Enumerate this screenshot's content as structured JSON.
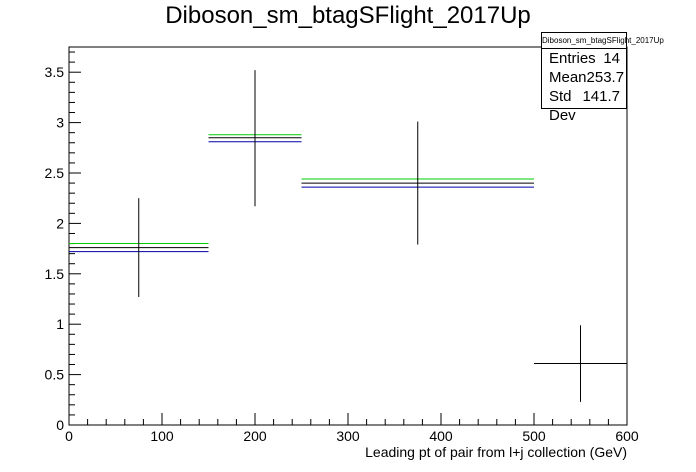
{
  "chart_data": {
    "type": "histogram",
    "title": "Diboson_sm_btagSFlight_2017Up",
    "xlabel": "Leading pt of pair from l+j collection (GeV)",
    "ylabel": "",
    "xlim": [
      0,
      600
    ],
    "ylim": [
      0,
      3.75
    ],
    "x_ticks": [
      0,
      100,
      200,
      300,
      400,
      500,
      600
    ],
    "y_ticks": [
      0,
      0.5,
      1,
      1.5,
      2,
      2.5,
      3,
      3.5
    ],
    "bins": [
      {
        "low": 0,
        "high": 150,
        "center": 75,
        "value": 1.76,
        "err_low": 1.27,
        "err_high": 2.25
      },
      {
        "low": 150,
        "high": 250,
        "center": 200,
        "value": 2.85,
        "err_low": 2.17,
        "err_high": 3.52
      },
      {
        "low": 250,
        "high": 500,
        "center": 375,
        "value": 2.4,
        "err_low": 1.79,
        "err_high": 3.01
      },
      {
        "low": 500,
        "high": 600,
        "center": 550,
        "value": 0.61,
        "err_low": 0.23,
        "err_high": 0.99
      }
    ],
    "variations": [
      {
        "color": "#00cc00",
        "values": [
          1.8,
          2.88,
          2.44,
          null
        ]
      },
      {
        "color": "#0000aa",
        "values": [
          1.72,
          2.81,
          2.36,
          null
        ]
      }
    ],
    "grid": false,
    "stats_box": {
      "title": "Diboson_sm_btagSFlight_2017Up",
      "rows": [
        {
          "label": "Entries",
          "value": "14"
        },
        {
          "label": "Mean",
          "value": "253.7"
        },
        {
          "label": "Std Dev",
          "value": "141.7"
        }
      ]
    }
  }
}
